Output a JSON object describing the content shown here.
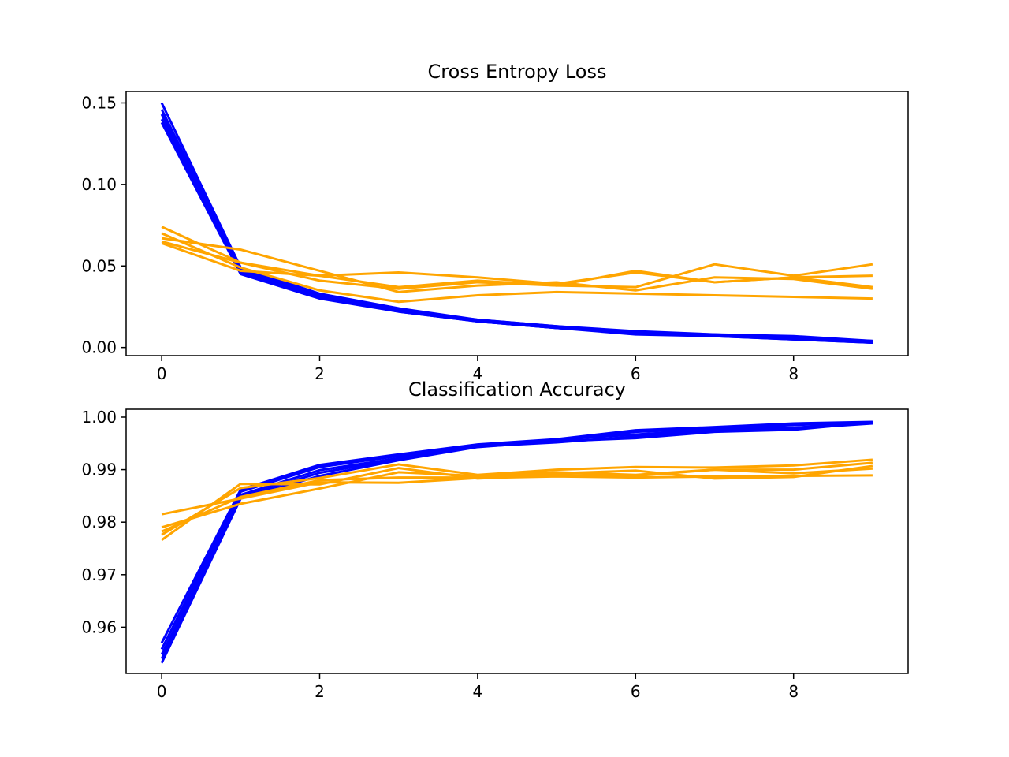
{
  "chart_data": [
    {
      "type": "line",
      "title": "Cross Entropy Loss",
      "xlabel": "",
      "ylabel": "",
      "xlim": [
        -0.45,
        9.45
      ],
      "ylim": [
        -0.005,
        0.157
      ],
      "xticks": [
        "0",
        "2",
        "4",
        "6",
        "8"
      ],
      "yticks": [
        "0.00",
        "0.05",
        "0.10",
        "0.15"
      ],
      "grid": false,
      "x": [
        0,
        1,
        2,
        3,
        4,
        5,
        6,
        7,
        8,
        9
      ],
      "series": [
        {
          "color": "#0000ff",
          "values": [
            0.15,
            0.049,
            0.033,
            0.024,
            0.017,
            0.013,
            0.01,
            0.008,
            0.007,
            0.004
          ]
        },
        {
          "color": "#0000ff",
          "values": [
            0.146,
            0.048,
            0.032,
            0.023,
            0.017,
            0.013,
            0.009,
            0.008,
            0.006,
            0.004
          ]
        },
        {
          "color": "#0000ff",
          "values": [
            0.143,
            0.047,
            0.031,
            0.023,
            0.016,
            0.012,
            0.009,
            0.007,
            0.006,
            0.003
          ]
        },
        {
          "color": "#0000ff",
          "values": [
            0.14,
            0.046,
            0.031,
            0.022,
            0.016,
            0.012,
            0.009,
            0.007,
            0.005,
            0.003
          ]
        },
        {
          "color": "#0000ff",
          "values": [
            0.138,
            0.045,
            0.03,
            0.022,
            0.016,
            0.012,
            0.008,
            0.007,
            0.005,
            0.003
          ]
        },
        {
          "color": "#ffa500",
          "values": [
            0.074,
            0.052,
            0.044,
            0.046,
            0.043,
            0.039,
            0.046,
            0.04,
            0.043,
            0.044
          ]
        },
        {
          "color": "#ffa500",
          "values": [
            0.07,
            0.049,
            0.035,
            0.028,
            0.032,
            0.034,
            0.033,
            0.032,
            0.031,
            0.03
          ]
        },
        {
          "color": "#ffa500",
          "values": [
            0.067,
            0.06,
            0.047,
            0.034,
            0.038,
            0.04,
            0.035,
            0.043,
            0.042,
            0.036
          ]
        },
        {
          "color": "#ffa500",
          "values": [
            0.065,
            0.052,
            0.041,
            0.036,
            0.04,
            0.038,
            0.047,
            0.04,
            0.043,
            0.037
          ]
        },
        {
          "color": "#ffa500",
          "values": [
            0.064,
            0.047,
            0.044,
            0.037,
            0.041,
            0.038,
            0.037,
            0.051,
            0.044,
            0.051
          ]
        }
      ]
    },
    {
      "type": "line",
      "title": "Classification Accuracy",
      "xlabel": "",
      "ylabel": "",
      "xlim": [
        -0.45,
        9.45
      ],
      "ylim": [
        0.9512,
        1.0015
      ],
      "xticks": [
        "0",
        "2",
        "4",
        "6",
        "8"
      ],
      "yticks": [
        "0.96",
        "0.97",
        "0.98",
        "0.99",
        "1.00"
      ],
      "grid": false,
      "x": [
        0,
        1,
        2,
        3,
        4,
        5,
        6,
        7,
        8,
        9
      ],
      "series": [
        {
          "color": "#0000ff",
          "values": [
            0.957,
            0.9862,
            0.9909,
            0.9929,
            0.9948,
            0.9958,
            0.9975,
            0.9981,
            0.9988,
            0.9991
          ]
        },
        {
          "color": "#0000ff",
          "values": [
            0.9558,
            0.9858,
            0.9905,
            0.9926,
            0.9946,
            0.9955,
            0.9972,
            0.9978,
            0.9985,
            0.999
          ]
        },
        {
          "color": "#0000ff",
          "values": [
            0.9548,
            0.9852,
            0.9899,
            0.9922,
            0.9946,
            0.9957,
            0.9967,
            0.9976,
            0.998,
            0.9989
          ]
        },
        {
          "color": "#0000ff",
          "values": [
            0.954,
            0.9848,
            0.9894,
            0.992,
            0.9944,
            0.9952,
            0.9963,
            0.9973,
            0.9978,
            0.9988
          ]
        },
        {
          "color": "#0000ff",
          "values": [
            0.9532,
            0.9845,
            0.9888,
            0.9918,
            0.9943,
            0.9954,
            0.996,
            0.9972,
            0.9976,
            0.999
          ]
        },
        {
          "color": "#ffa500",
          "values": [
            0.9815,
            0.9845,
            0.9876,
            0.9875,
            0.9884,
            0.9887,
            0.9885,
            0.9887,
            0.9888,
            0.9889
          ]
        },
        {
          "color": "#ffa500",
          "values": [
            0.979,
            0.9835,
            0.9864,
            0.9895,
            0.9888,
            0.9895,
            0.989,
            0.99,
            0.99,
            0.9913
          ]
        },
        {
          "color": "#ffa500",
          "values": [
            0.9782,
            0.9848,
            0.988,
            0.9885,
            0.9885,
            0.9893,
            0.9898,
            0.9883,
            0.9886,
            0.9907
          ]
        },
        {
          "color": "#ffa500",
          "values": [
            0.9776,
            0.9865,
            0.9884,
            0.991,
            0.989,
            0.99,
            0.9905,
            0.9904,
            0.9908,
            0.9919
          ]
        },
        {
          "color": "#ffa500",
          "values": [
            0.9766,
            0.9873,
            0.9872,
            0.9903,
            0.9883,
            0.989,
            0.9888,
            0.99,
            0.9893,
            0.9902
          ]
        }
      ]
    }
  ]
}
